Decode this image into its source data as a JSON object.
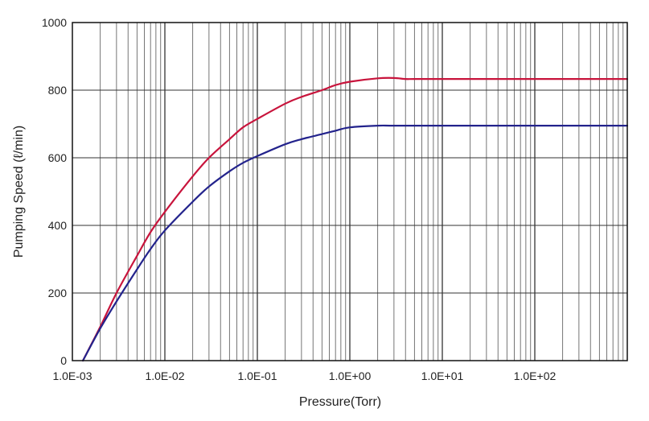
{
  "chart_data": {
    "type": "line",
    "title": "",
    "xlabel": "Pressure(Torr)",
    "ylabel": "Pumping Speed (ℓ/min)",
    "x_scale": "log",
    "xlim": [
      0.001,
      1000
    ],
    "ylim": [
      0,
      1000
    ],
    "grid": true,
    "legend": "none",
    "x_tick_labels": [
      "1.0E-03",
      "1.0E-02",
      "1.0E-01",
      "1.0E+00",
      "1.0E+01",
      "1.0E+02"
    ],
    "x_tick_values": [
      0.001,
      0.01,
      0.1,
      1,
      10,
      100
    ],
    "y_tick_labels": [
      "0",
      "200",
      "400",
      "600",
      "800",
      "1000"
    ],
    "y_tick_values": [
      0,
      200,
      400,
      600,
      800,
      1000
    ],
    "series": [
      {
        "color": "#c8143c",
        "x": [
          0.0013,
          0.002,
          0.003,
          0.005,
          0.007,
          0.01,
          0.02,
          0.03,
          0.05,
          0.07,
          0.1,
          0.2,
          0.3,
          0.5,
          0.7,
          1,
          2,
          3,
          4,
          5,
          10,
          100,
          1000
        ],
        "values": [
          0,
          100,
          200,
          310,
          380,
          440,
          545,
          600,
          655,
          690,
          715,
          760,
          780,
          800,
          815,
          825,
          835,
          836,
          833,
          833,
          833,
          833,
          833
        ]
      },
      {
        "color": "#23238c",
        "x": [
          0.0013,
          0.002,
          0.003,
          0.005,
          0.007,
          0.01,
          0.02,
          0.03,
          0.05,
          0.07,
          0.1,
          0.2,
          0.3,
          0.5,
          0.7,
          1,
          2,
          3,
          10,
          100,
          1000
        ],
        "values": [
          0,
          95,
          175,
          270,
          330,
          385,
          470,
          515,
          560,
          585,
          605,
          640,
          655,
          670,
          680,
          690,
          695,
          695,
          695,
          695,
          695
        ]
      }
    ]
  }
}
